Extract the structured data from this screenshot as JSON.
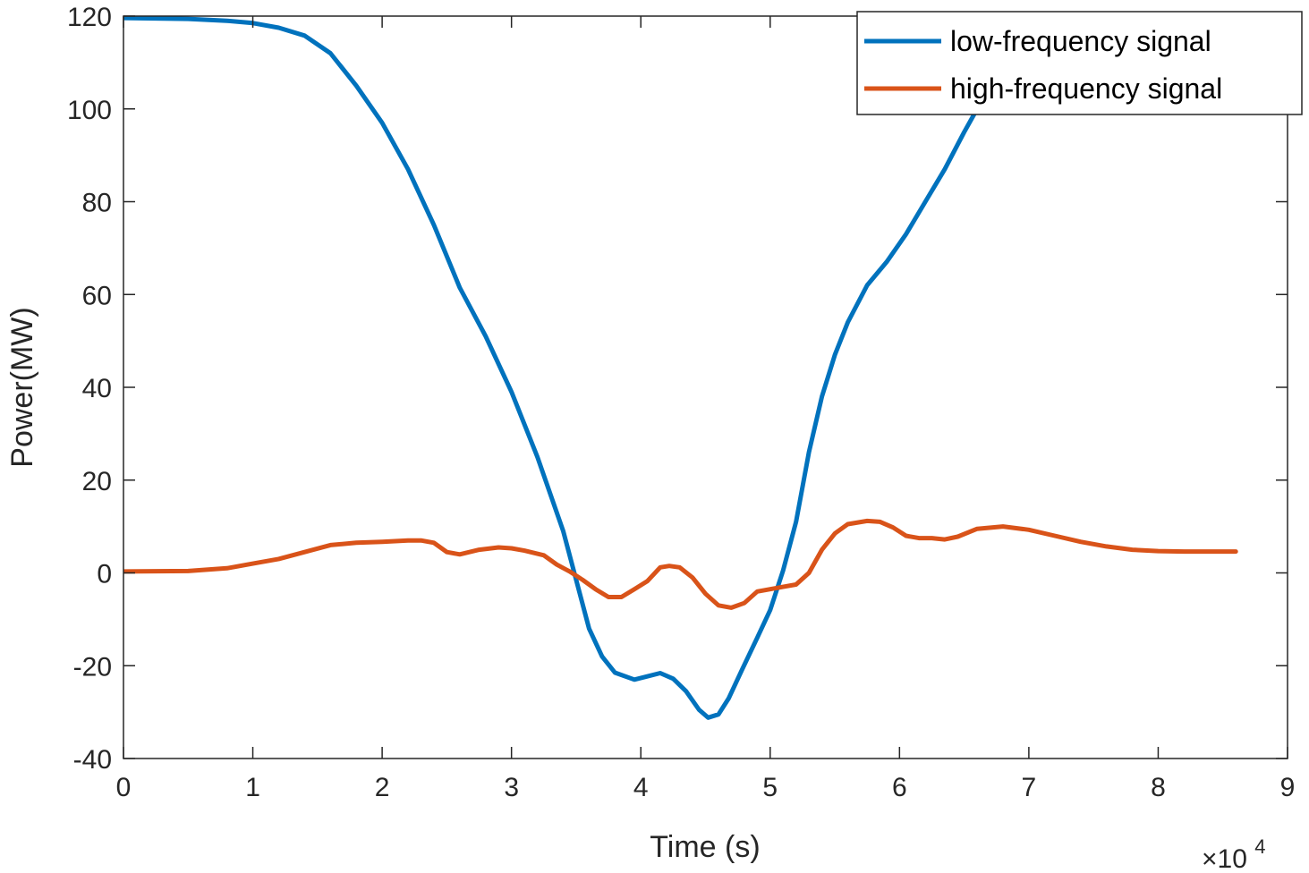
{
  "chart_data": {
    "type": "line",
    "title": "",
    "xlabel": "Time (s)",
    "ylabel": "Power(MW)",
    "x_scale_base": "×10",
    "x_scale_exp": "4",
    "xlim": [
      0,
      9
    ],
    "ylim": [
      -40,
      120
    ],
    "xticks": [
      0,
      1,
      2,
      3,
      4,
      5,
      6,
      7,
      8,
      9
    ],
    "xtick_labels": [
      "0",
      "1",
      "2",
      "3",
      "4",
      "5",
      "6",
      "7",
      "8",
      "9"
    ],
    "yticks": [
      -40,
      -20,
      0,
      20,
      40,
      60,
      80,
      100,
      120
    ],
    "ytick_labels": [
      "-40",
      "-20",
      "0",
      "20",
      "40",
      "60",
      "80",
      "100",
      "120"
    ],
    "grid": false,
    "legend_position": "top-right",
    "series": [
      {
        "name": "low-frequency signal",
        "color": "#0072BD",
        "x": [
          0,
          0.5,
          0.8,
          1.0,
          1.2,
          1.4,
          1.6,
          1.8,
          2.0,
          2.2,
          2.4,
          2.6,
          2.8,
          3.0,
          3.2,
          3.4,
          3.6,
          3.7,
          3.8,
          3.95,
          4.05,
          4.15,
          4.25,
          4.35,
          4.45,
          4.52,
          4.6,
          4.68,
          4.78,
          4.9,
          5.0,
          5.1,
          5.2,
          5.3,
          5.4,
          5.5,
          5.6,
          5.75,
          5.9,
          6.05,
          6.2,
          6.35,
          6.5,
          6.6
        ],
        "y": [
          119.6,
          119.4,
          119.0,
          118.5,
          117.5,
          115.8,
          112.0,
          105.0,
          97.0,
          87.0,
          75.0,
          61.5,
          51.0,
          39.0,
          25.0,
          9.0,
          -12.0,
          -18.0,
          -21.5,
          -23.0,
          -22.3,
          -21.6,
          -22.8,
          -25.5,
          -29.5,
          -31.2,
          -30.5,
          -27.0,
          -21.0,
          -14.0,
          -8.0,
          0.5,
          11.0,
          26.0,
          38.0,
          47.0,
          54.0,
          62.0,
          67.0,
          73.0,
          80.0,
          87.0,
          95.0,
          100.0
        ]
      },
      {
        "name": "high-frequency signal",
        "color": "#D95319",
        "x": [
          0,
          0.5,
          0.8,
          1.0,
          1.2,
          1.4,
          1.6,
          1.8,
          2.0,
          2.2,
          2.3,
          2.4,
          2.5,
          2.6,
          2.75,
          2.9,
          3.0,
          3.1,
          3.25,
          3.35,
          3.45,
          3.55,
          3.65,
          3.75,
          3.85,
          3.95,
          4.05,
          4.15,
          4.22,
          4.3,
          4.4,
          4.5,
          4.6,
          4.7,
          4.8,
          4.9,
          5.0,
          5.1,
          5.2,
          5.3,
          5.4,
          5.5,
          5.6,
          5.75,
          5.85,
          5.95,
          6.05,
          6.15,
          6.25,
          6.35,
          6.45,
          6.6,
          6.8,
          7.0,
          7.2,
          7.4,
          7.6,
          7.8,
          8.0,
          8.2,
          8.4,
          8.6
        ],
        "y": [
          0.3,
          0.4,
          1.0,
          2.0,
          3.0,
          4.5,
          6.0,
          6.5,
          6.7,
          7.0,
          7.0,
          6.5,
          4.5,
          4.0,
          5.0,
          5.5,
          5.3,
          4.8,
          3.8,
          1.8,
          0.3,
          -1.5,
          -3.5,
          -5.2,
          -5.2,
          -3.5,
          -1.8,
          1.2,
          1.5,
          1.2,
          -1.0,
          -4.5,
          -7.0,
          -7.5,
          -6.5,
          -4.0,
          -3.5,
          -3.0,
          -2.5,
          0.0,
          5.0,
          8.5,
          10.5,
          11.2,
          11.0,
          9.8,
          8.0,
          7.5,
          7.5,
          7.2,
          7.8,
          9.5,
          10.0,
          9.3,
          8.0,
          6.7,
          5.7,
          5.0,
          4.7,
          4.6,
          4.6,
          4.6
        ]
      }
    ]
  }
}
